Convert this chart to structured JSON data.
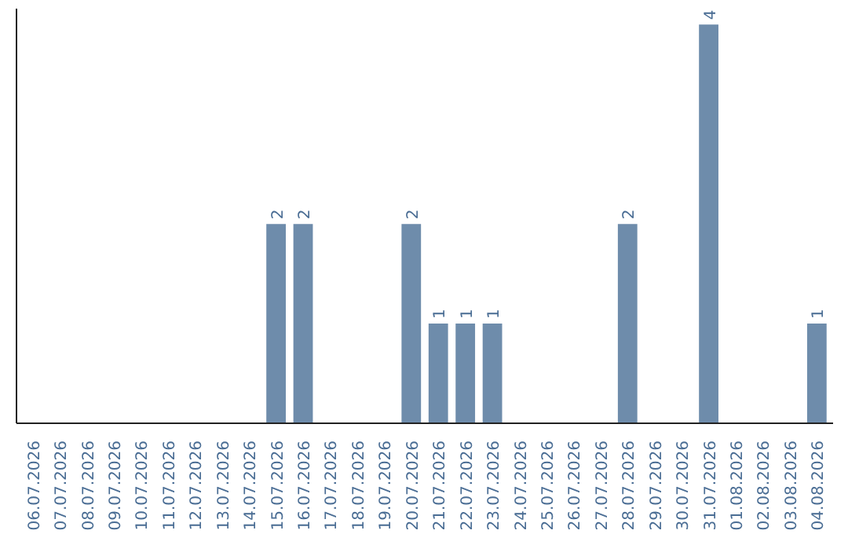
{
  "chart_data": {
    "type": "bar",
    "categories": [
      "06.07.2026",
      "07.07.2026",
      "08.07.2026",
      "09.07.2026",
      "10.07.2026",
      "11.07.2026",
      "12.07.2026",
      "13.07.2026",
      "14.07.2026",
      "15.07.2026",
      "16.07.2026",
      "17.07.2026",
      "18.07.2026",
      "19.07.2026",
      "20.07.2026",
      "21.07.2026",
      "22.07.2026",
      "23.07.2026",
      "24.07.2026",
      "25.07.2026",
      "26.07.2026",
      "27.07.2026",
      "28.07.2026",
      "29.07.2026",
      "30.07.2026",
      "31.07.2026",
      "01.08.2026",
      "02.08.2026",
      "03.08.2026",
      "04.08.2026"
    ],
    "values": [
      0,
      0,
      0,
      0,
      0,
      0,
      0,
      0,
      0,
      2,
      2,
      0,
      0,
      0,
      2,
      1,
      1,
      1,
      0,
      0,
      0,
      0,
      2,
      0,
      0,
      4,
      0,
      0,
      0,
      1
    ],
    "value_labels": [
      null,
      null,
      null,
      null,
      null,
      null,
      null,
      null,
      null,
      "2",
      "2",
      null,
      null,
      null,
      "2",
      "1",
      "1",
      "1",
      null,
      null,
      null,
      null,
      "2",
      null,
      null,
      "4",
      null,
      null,
      null,
      "1"
    ],
    "color": "#6e8cab",
    "grid": false
  }
}
